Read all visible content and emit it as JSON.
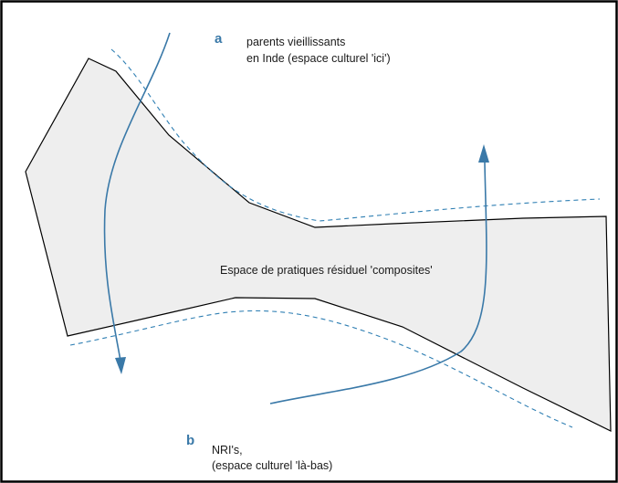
{
  "diagram": {
    "label_a": {
      "letter": "a",
      "line1": "parents vieillissants",
      "line2": "en Inde (espace culturel 'ici')"
    },
    "label_b": {
      "letter": "b",
      "line1": "NRI's,",
      "line2": "(espace culturel 'là-bas)"
    },
    "center_label": "Espace de pratiques résiduel 'composites'",
    "colors": {
      "zone_fill": "#eeeeee",
      "outline": "#000000",
      "accent_blue": "#3a79a8",
      "dash_blue": "#2f7fb3"
    }
  }
}
